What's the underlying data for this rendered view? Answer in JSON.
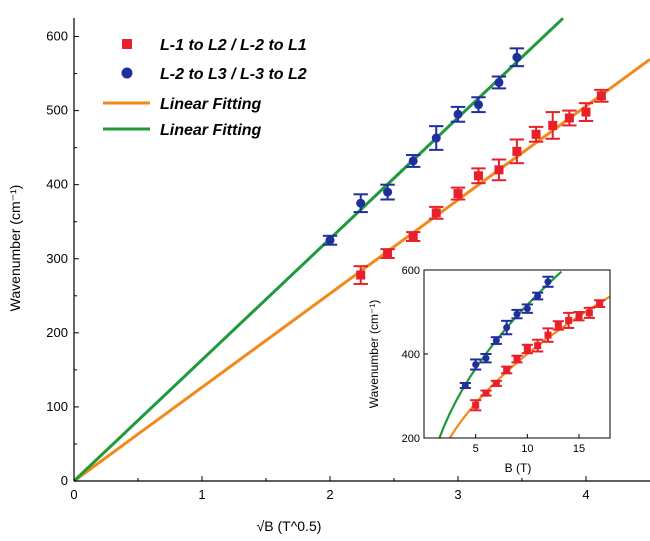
{
  "chart_data": [
    {
      "type": "scatter",
      "title": "",
      "xlabel": "√B (T^0.5)",
      "ylabel": "Wavenumber (cm⁻¹)",
      "xlim": [
        0,
        4.5
      ],
      "ylim": [
        0,
        625
      ],
      "xticks": [
        "0",
        "1",
        "2",
        "3",
        "4"
      ],
      "yticks": [
        "0",
        "100",
        "200",
        "300",
        "400",
        "500",
        "600"
      ],
      "grid": false,
      "legend_position": "top-left",
      "legend": [
        {
          "kind": "marker",
          "marker": "square",
          "color": "#e8202a",
          "text": "L-1 to L2 / L-2 to L1"
        },
        {
          "kind": "marker",
          "marker": "circle",
          "color": "#1f2f9e",
          "text": "L-2 to L3 / L-3 to L2"
        },
        {
          "kind": "line",
          "color": "#f08a1c",
          "text": "Linear Fitting"
        },
        {
          "kind": "line",
          "color": "#1e9a3a",
          "text": "Linear Fitting"
        }
      ],
      "series": [
        {
          "marker": "square",
          "color": "#e8202a",
          "x": [
            2.24,
            2.45,
            2.65,
            2.83,
            3.0,
            3.16,
            3.32,
            3.46,
            3.61,
            3.74,
            3.87,
            4.0,
            4.12
          ],
          "y": [
            278,
            307,
            330,
            362,
            388,
            412,
            420,
            445,
            468,
            480,
            490,
            498,
            520
          ],
          "err": [
            12,
            6,
            6,
            8,
            8,
            10,
            14,
            16,
            10,
            18,
            10,
            12,
            8
          ]
        },
        {
          "marker": "circle",
          "color": "#1f2f9e",
          "x": [
            2.0,
            2.24,
            2.45,
            2.65,
            2.83,
            3.0,
            3.16,
            3.32,
            3.46
          ],
          "y": [
            325,
            375,
            390,
            432,
            463,
            495,
            508,
            538,
            572
          ],
          "err": [
            6,
            12,
            10,
            8,
            16,
            10,
            10,
            8,
            12
          ]
        }
      ],
      "fits": [
        {
          "color": "#f08a1c",
          "slope": 126.5,
          "intercept": 0,
          "x_range": [
            0,
            4.5
          ]
        },
        {
          "color": "#1e9a3a",
          "slope": 163.5,
          "intercept": 0,
          "x_range": [
            0,
            3.82
          ]
        }
      ]
    },
    {
      "type": "scatter",
      "title": "",
      "xlabel": "B (T)",
      "ylabel": "Wavenumber (cm⁻¹)",
      "xlim": [
        0,
        18
      ],
      "ylim": [
        200,
        600
      ],
      "xticks": [
        "5",
        "10",
        "15"
      ],
      "yticks": [
        "200",
        "400",
        "600"
      ],
      "series": [
        {
          "marker": "square",
          "color": "#e8202a",
          "x": [
            5,
            6,
            7,
            8,
            9,
            10,
            11,
            12,
            13,
            14,
            15,
            16,
            17
          ],
          "y": [
            278,
            307,
            330,
            362,
            388,
            412,
            420,
            445,
            468,
            480,
            490,
            498,
            520
          ],
          "err": [
            12,
            6,
            6,
            8,
            8,
            10,
            14,
            16,
            10,
            18,
            10,
            12,
            8
          ]
        },
        {
          "marker": "circle",
          "color": "#1f2f9e",
          "x": [
            4,
            5,
            6,
            7,
            8,
            9,
            10,
            11,
            12
          ],
          "y": [
            325,
            375,
            390,
            432,
            463,
            495,
            508,
            538,
            572
          ],
          "err": [
            6,
            12,
            10,
            8,
            16,
            10,
            10,
            8,
            12
          ]
        }
      ],
      "fits": [
        {
          "color": "#f08a1c",
          "coef": 126.5,
          "x_range": [
            2.5,
            18
          ]
        },
        {
          "color": "#1e9a3a",
          "coef": 163.5,
          "x_range": [
            1.5,
            13.5
          ]
        }
      ]
    }
  ]
}
